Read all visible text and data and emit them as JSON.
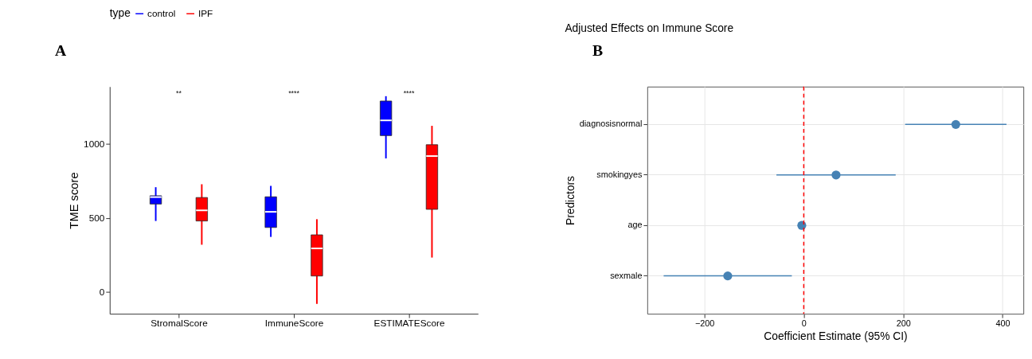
{
  "chart_data": [
    {
      "type": "box",
      "ylabel": "TME score",
      "legend_title": "type",
      "legend": "top",
      "grid": false,
      "categories": [
        "StromalScore",
        "ImmuneScore",
        "ESTIMATEScore"
      ],
      "ylim": [
        -150,
        1390
      ],
      "yticks": [
        0,
        500,
        1000
      ],
      "series": [
        {
          "name": "control",
          "color": "#0000ff",
          "boxes": [
            {
              "low": 479,
              "q1": 594,
              "median": 641,
              "q3": 650,
              "high": 708
            },
            {
              "low": 371,
              "q1": 435,
              "median": 541,
              "q3": 643,
              "high": 717
            },
            {
              "low": 903,
              "q1": 1058,
              "median": 1161,
              "q3": 1292,
              "high": 1325
            }
          ]
        },
        {
          "name": "IPF",
          "color": "#ff0000",
          "boxes": [
            {
              "low": 318,
              "q1": 479,
              "median": 551,
              "q3": 638,
              "high": 728
            },
            {
              "low": -83,
              "q1": 106,
              "median": 293,
              "q3": 385,
              "high": 491
            },
            {
              "low": 231,
              "q1": 558,
              "median": 919,
              "q3": 996,
              "high": 1124
            }
          ]
        }
      ],
      "annotations": [
        "A",
        "**",
        "****",
        "****"
      ]
    },
    {
      "type": "scatter",
      "orientation": "horizontal",
      "title": "Adjusted Effects on Immune Score",
      "xlabel": "Coefficient Estimate (95% CI)",
      "ylabel": "Predictors",
      "grid": true,
      "marker": "circle",
      "categories": [
        "diagnosisnormal",
        "smokingyes",
        "age",
        "sexmale"
      ],
      "xlim": [
        -315,
        442
      ],
      "xticks": [
        -200,
        0,
        200,
        400
      ],
      "series": [
        {
          "color": "#4682b4",
          "values": [
            306,
            65,
            -4,
            -153
          ],
          "errors": [
            [
              204,
              408
            ],
            [
              -55,
              185
            ],
            null,
            [
              -282,
              -24
            ]
          ]
        }
      ],
      "ref_lines": [
        {
          "axis": "x",
          "value": 0,
          "color": "#ff0000",
          "line_style": "dashed"
        }
      ],
      "annotations": [
        "B"
      ]
    }
  ]
}
